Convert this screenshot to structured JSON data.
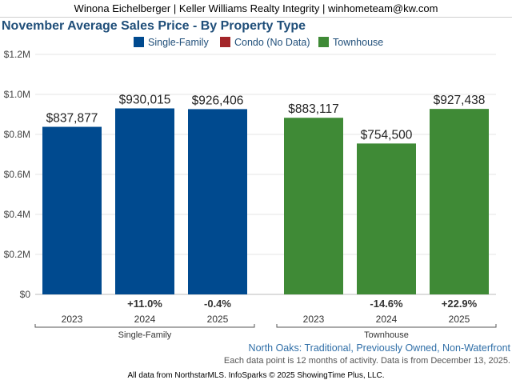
{
  "header": {
    "agent_line": "Winona Eichelberger | Keller Williams Realty Integrity | winhometeam@kw.com"
  },
  "colors": {
    "single_family": "#004a8f",
    "condo": "#a3262a",
    "townhouse": "#3f8a36",
    "title": "#1f4e79"
  },
  "legend": [
    {
      "label": "Single-Family",
      "color": "#004a8f"
    },
    {
      "label": "Condo (No Data)",
      "color": "#a3262a"
    },
    {
      "label": "Townhouse",
      "color": "#3f8a36"
    }
  ],
  "chart_data": {
    "type": "bar",
    "title": "November Average Sales Price - By Property Type",
    "ylim": [
      0,
      1200000
    ],
    "yticks": [
      {
        "value": 0,
        "label": "$0"
      },
      {
        "value": 200000,
        "label": "$0.2M"
      },
      {
        "value": 400000,
        "label": "$0.4M"
      },
      {
        "value": 600000,
        "label": "$0.6M"
      },
      {
        "value": 800000,
        "label": "$0.8M"
      },
      {
        "value": 1000000,
        "label": "$1.0M"
      },
      {
        "value": 1200000,
        "label": "$1.2M"
      }
    ],
    "groups": [
      {
        "name": "Single-Family",
        "color": "#004a8f",
        "bars": [
          {
            "year": "2023",
            "value": 837877,
            "label": "$837,877",
            "change": ""
          },
          {
            "year": "2024",
            "value": 930015,
            "label": "$930,015",
            "change": "+11.0%"
          },
          {
            "year": "2025",
            "value": 926406,
            "label": "$926,406",
            "change": "-0.4%"
          }
        ]
      },
      {
        "name": "Townhouse",
        "color": "#3f8a36",
        "bars": [
          {
            "year": "2023",
            "value": 883117,
            "label": "$883,117",
            "change": ""
          },
          {
            "year": "2024",
            "value": 754500,
            "label": "$754,500",
            "change": "-14.6%"
          },
          {
            "year": "2025",
            "value": 927438,
            "label": "$927,438",
            "change": "+22.9%"
          }
        ]
      }
    ]
  },
  "footer": {
    "area": "North Oaks: Traditional, Previously Owned, Non-Waterfront",
    "note": "Each data point is 12 months of activity. Data is from December 13, 2025.",
    "source": "All data from NorthstarMLS. InfoSparks © 2025 ShowingTime Plus, LLC."
  }
}
